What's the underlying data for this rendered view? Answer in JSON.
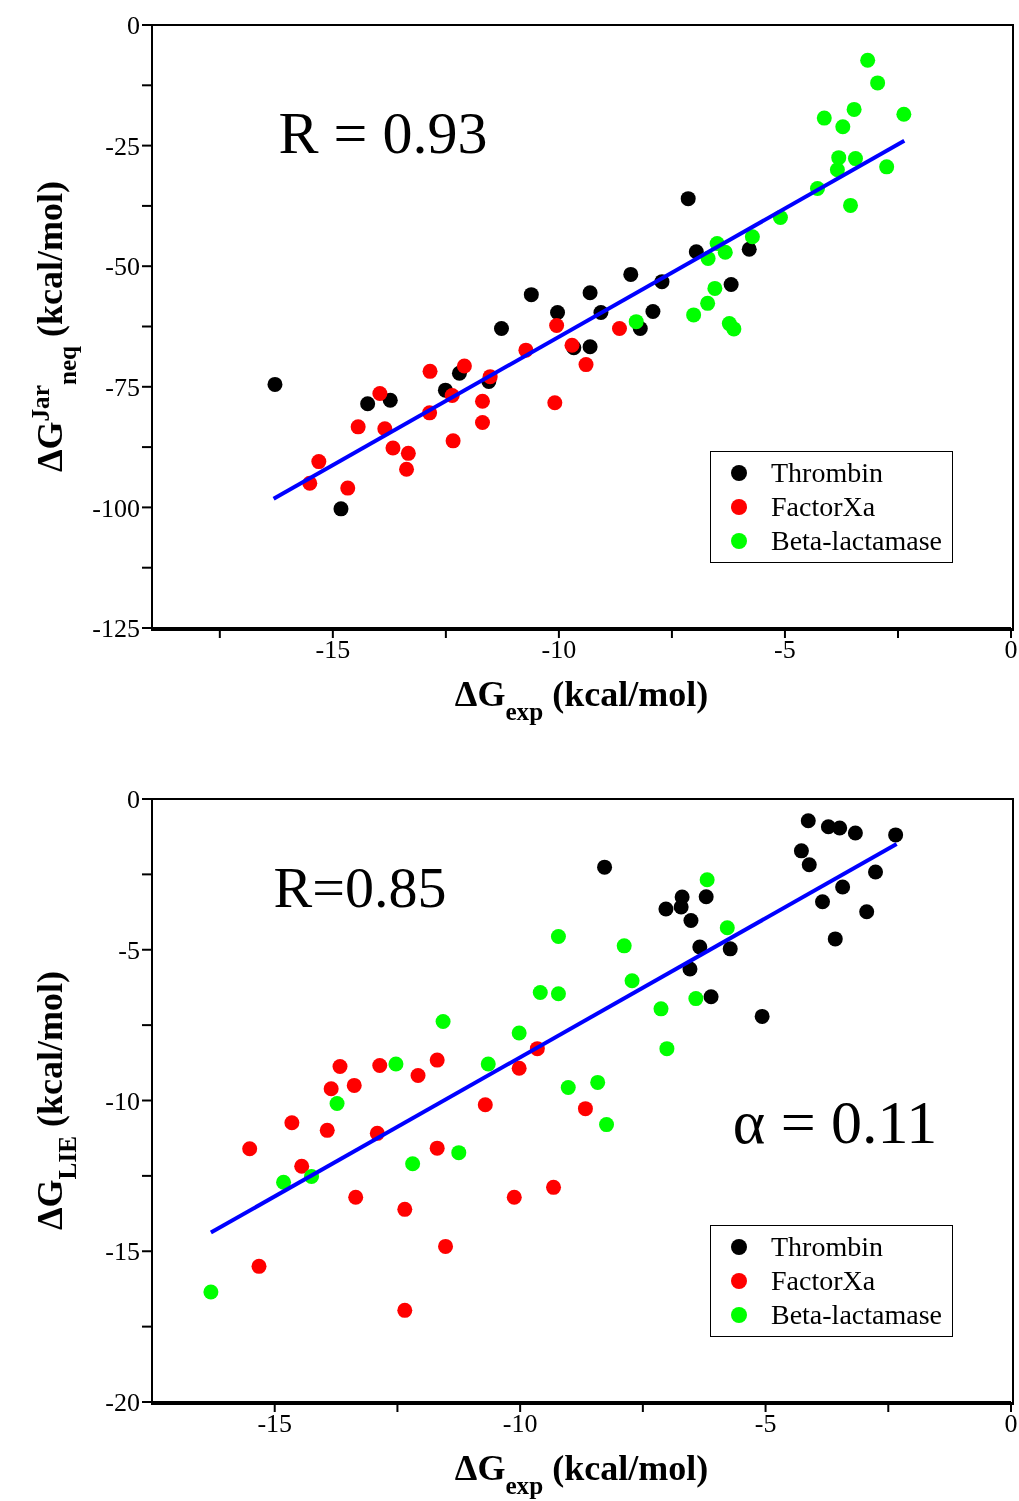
{
  "chart_data": [
    {
      "type": "scatter",
      "xlabel": "ΔG$_{exp}$ (kcal/mol)",
      "ylabel": "ΔG$^{Jar}$$_{neq}$ (kcal/mol)",
      "annotations": [
        "R = 0.93"
      ],
      "xlim": [
        -19,
        0
      ],
      "ylim": [
        -125,
        0
      ],
      "xticks": [
        {
          "value": -17.5,
          "label": null
        },
        -15,
        {
          "value": -12.5,
          "label": null
        },
        -10,
        {
          "value": -7.5,
          "label": null
        },
        -5,
        {
          "value": -2.5,
          "label": null
        },
        0
      ],
      "yticks": [
        -125,
        {
          "value": -112.5,
          "label": null
        },
        -100,
        {
          "value": -87.5,
          "label": null
        },
        -75,
        {
          "value": -62.5,
          "label": null
        },
        -50,
        {
          "value": -37.5,
          "label": null
        },
        -25,
        {
          "value": -12.5,
          "label": null
        },
        0
      ],
      "grid": false,
      "legend": "bottom right",
      "marker": "circle",
      "series": [
        {
          "name": "Thrombin",
          "color": "#000000",
          "x": [
            -16.28,
            -10.61,
            -10.03,
            -11.27,
            -12.2,
            -12.51,
            -11.55,
            -14.23,
            -13.73,
            -14.82,
            -9.67,
            -9.31,
            -7.14,
            -6.96,
            -5.79,
            -8.41,
            -7.72,
            -9.31,
            -9.07,
            -7.92,
            -6.19,
            -8.2
          ],
          "values": [
            -74.5,
            -55.9,
            -59.6,
            -62.9,
            -72.2,
            -75.7,
            -73.9,
            -78.5,
            -77.8,
            -100.3,
            -66.9,
            -66.7,
            -36,
            -47,
            -46.5,
            -51.7,
            -53.2,
            -55.5,
            -59.6,
            -59.4,
            -53.8,
            -62.9
          ]
        },
        {
          "name": "FactorXa",
          "color": "#ff0000",
          "x": [
            -10.05,
            -10.73,
            -12.09,
            -12.85,
            -11.52,
            -13.96,
            -12.36,
            -11.69,
            -10.09,
            -12.86,
            -14.44,
            -13.85,
            -11.69,
            -12.34,
            -13.67,
            -13.33,
            -13.37,
            -15.31,
            -15.51,
            -14.67,
            -9.71,
            -9.4,
            -8.66
          ],
          "values": [
            -62.3,
            -67.4,
            -70.7,
            -71.8,
            -72.9,
            -76.4,
            -76.8,
            -78,
            -78.3,
            -80.4,
            -83.3,
            -83.7,
            -82.4,
            -86.2,
            -87.7,
            -88.8,
            -92.1,
            -90.5,
            -95,
            -96,
            -66.4,
            -70.4,
            -62.9
          ]
        },
        {
          "name": "Beta-lactamase",
          "color": "#00ff00",
          "x": [
            -3.17,
            -2.95,
            -2.37,
            -4.13,
            -3.47,
            -3.72,
            -3.81,
            -3.44,
            -3.84,
            -2.75,
            -4.28,
            -3.55,
            -5.1,
            -5.72,
            -6.5,
            -6.32,
            -6.7,
            -6.55,
            -6.71,
            -7.02,
            -8.29,
            -6.23,
            -6.13
          ],
          "values": [
            -7.3,
            -12,
            -18.5,
            -19.3,
            -17.5,
            -21.1,
            -27.5,
            -27.7,
            -30,
            -29.4,
            -33.9,
            -37.4,
            -39.9,
            -43.9,
            -45.3,
            -47.1,
            -48.4,
            -54.6,
            -57.7,
            -60.1,
            -61.5,
            -61.9,
            -63
          ]
        },
        {
          "type": "line",
          "color": "#0000ff",
          "marker": "none",
          "x": [
            -16.31,
            -2.36
          ],
          "values": [
            -98.2,
            -24
          ]
        }
      ]
    },
    {
      "type": "scatter",
      "xlabel": "ΔG$_{exp}$ (kcal/mol)",
      "ylabel": "ΔG$_{LIE}$ (kcal/mol)",
      "annotations": [
        "R=0.85",
        "α = 0.11"
      ],
      "xlim": [
        -17.5,
        0
      ],
      "ylim": [
        -20,
        0
      ],
      "xticks": [
        -15,
        {
          "value": -12.5,
          "label": null
        },
        -10,
        {
          "value": -7.5,
          "label": null
        },
        -5,
        {
          "value": -2.5,
          "label": null
        },
        0
      ],
      "yticks": [
        -20,
        {
          "value": -17.5,
          "label": null
        },
        -15,
        {
          "value": -12.5,
          "label": null
        },
        -10,
        {
          "value": -7.5,
          "label": null
        },
        -5,
        {
          "value": -2.5,
          "label": null
        },
        0
      ],
      "grid": false,
      "legend": "bottom right",
      "marker": "circle",
      "series": [
        {
          "name": "Thrombin",
          "color": "#000000",
          "x": [
            -8.28,
            -4.13,
            -3.72,
            -3.49,
            -3.17,
            -2.35,
            -4.27,
            -4.11,
            -2.76,
            -3.43,
            -3.84,
            -2.94,
            -3.58,
            -6.7,
            -7.03,
            -6.72,
            -6.21,
            -6.52,
            -6.34,
            -5.72,
            -6.54,
            -6.11,
            -5.07
          ],
          "values": [
            -2.26,
            -0.72,
            -0.92,
            -0.96,
            -1.13,
            -1.19,
            -1.72,
            -2.18,
            -2.42,
            -2.92,
            -3.41,
            -3.74,
            -4.64,
            -3.25,
            -3.65,
            -3.58,
            -3.24,
            -4.03,
            -4.91,
            -4.97,
            -5.64,
            -6.56,
            -7.21
          ]
        },
        {
          "name": "FactorXa",
          "color": "#ff0000",
          "x": [
            -15.51,
            -14.65,
            -14.45,
            -13.93,
            -13.85,
            -13.67,
            -13.38,
            -12.86,
            -12.91,
            -12.08,
            -11.69,
            -11.69,
            -13.35,
            -12.35,
            -11.52,
            -12.35,
            -15.32,
            -10.71,
            -10.02,
            -9.65,
            -10.12,
            -9.32,
            -8.67
          ],
          "values": [
            -11.6,
            -10.74,
            -12.18,
            -10.99,
            -9.61,
            -8.87,
            -9.5,
            -8.84,
            -11.09,
            -9.17,
            -8.66,
            -11.58,
            -13.21,
            -13.61,
            -14.84,
            -16.96,
            -15.5,
            -10.14,
            -8.93,
            -8.28,
            -13.21,
            -12.88,
            -10.27
          ]
        },
        {
          "name": "Beta-lactamase",
          "color": "#00ff00",
          "x": [
            -16.3,
            -14.82,
            -14.25,
            -13.73,
            -12.53,
            -11.57,
            -12.19,
            -11.25,
            -10.65,
            -10.02,
            -9.59,
            -9.22,
            -9.22,
            -9.02,
            -7.88,
            -7.72,
            -6.19,
            -5.78,
            -7.13,
            -6.42,
            -7.01,
            -8.42,
            -8.24
          ],
          "values": [
            -16.35,
            -12.71,
            -12.52,
            -10.1,
            -8.79,
            -7.38,
            -12.1,
            -11.73,
            -8.79,
            -7.76,
            -6.42,
            -6.46,
            -4.56,
            -9.57,
            -4.87,
            -6.03,
            -2.68,
            -4.27,
            -6.96,
            -6.62,
            -8.28,
            -9.4,
            -10.8
          ]
        },
        {
          "type": "line",
          "color": "#0000ff",
          "marker": "none",
          "x": [
            -16.3,
            -2.33
          ],
          "values": [
            -14.38,
            -1.49
          ]
        }
      ]
    }
  ]
}
